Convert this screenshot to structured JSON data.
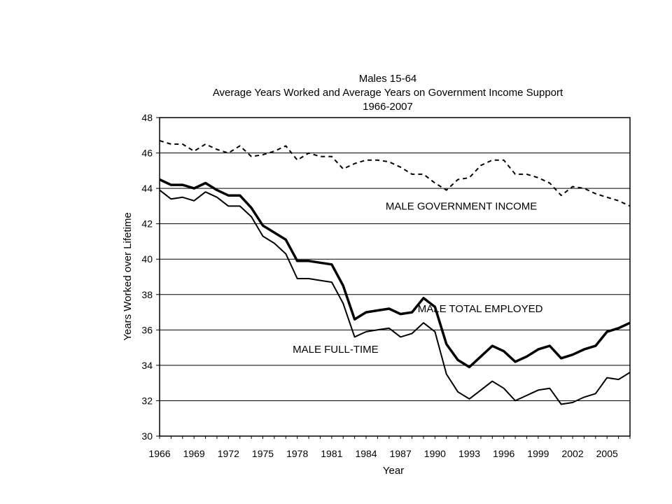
{
  "chart_data": {
    "type": "line",
    "title_lines": [
      "Males 15-64",
      "Average Years Worked and Average Years on Government Income Support",
      "1966-2007"
    ],
    "xlabel": "Year",
    "ylabel": "Years Worked over Lifetime",
    "xlim": [
      1966,
      2007
    ],
    "ylim": [
      30,
      48
    ],
    "y_ticks": [
      30,
      32,
      34,
      36,
      38,
      40,
      42,
      44,
      46,
      48
    ],
    "y_tick_labels": [
      "30",
      "32",
      "34",
      "36",
      "38",
      "40",
      "42",
      "44",
      "46",
      "48"
    ],
    "x_ticks": [
      1966,
      1969,
      1972,
      1975,
      1978,
      1981,
      1984,
      1987,
      1990,
      1993,
      1996,
      1999,
      2002,
      2005
    ],
    "x_tick_labels": [
      "1966",
      "1969",
      "1972",
      "1975",
      "1978",
      "1981",
      "1984",
      "1987",
      "1990",
      "1993",
      "1996",
      "1999",
      "2002",
      "2005"
    ],
    "grid": "horizontal",
    "x": [
      1966,
      1967,
      1968,
      1969,
      1970,
      1971,
      1972,
      1973,
      1974,
      1975,
      1976,
      1977,
      1978,
      1979,
      1980,
      1981,
      1982,
      1983,
      1984,
      1985,
      1986,
      1987,
      1988,
      1989,
      1990,
      1991,
      1992,
      1993,
      1994,
      1995,
      1996,
      1997,
      1998,
      1999,
      2000,
      2001,
      2002,
      2003,
      2004,
      2005,
      2006,
      2007
    ],
    "series": [
      {
        "name": "MALE GOVERNMENT INCOME",
        "style": "dashed",
        "values": [
          46.7,
          46.5,
          46.5,
          46.1,
          46.5,
          46.2,
          46.0,
          46.4,
          45.8,
          45.9,
          46.1,
          46.4,
          45.6,
          46.0,
          45.8,
          45.8,
          45.1,
          45.4,
          45.6,
          45.6,
          45.5,
          45.2,
          44.8,
          44.8,
          44.3,
          43.9,
          44.5,
          44.6,
          45.3,
          45.6,
          45.6,
          44.8,
          44.8,
          44.6,
          44.3,
          43.6,
          44.1,
          44.0,
          43.7,
          43.5,
          43.3,
          43.0
        ],
        "label_year": 1985.7,
        "label_value": 42.8
      },
      {
        "name": "MALE TOTAL EMPLOYED",
        "style": "thick",
        "values": [
          44.5,
          44.2,
          44.2,
          44.0,
          44.3,
          43.9,
          43.6,
          43.6,
          42.9,
          41.9,
          41.5,
          41.1,
          39.9,
          39.9,
          39.8,
          39.7,
          38.5,
          36.6,
          37.0,
          37.1,
          37.2,
          36.9,
          37.0,
          37.8,
          37.3,
          35.2,
          34.3,
          33.9,
          34.5,
          35.1,
          34.8,
          34.2,
          34.5,
          34.9,
          35.1,
          34.4,
          34.6,
          34.9,
          35.1,
          35.9,
          36.1,
          36.4
        ],
        "label_year": 1988.5,
        "label_value": 37.0
      },
      {
        "name": "MALE FULL-TIME",
        "style": "thin",
        "values": [
          43.9,
          43.4,
          43.5,
          43.3,
          43.8,
          43.5,
          43.0,
          43.0,
          42.4,
          41.3,
          40.9,
          40.3,
          38.9,
          38.9,
          38.8,
          38.7,
          37.5,
          35.6,
          35.9,
          36.0,
          36.1,
          35.6,
          35.8,
          36.4,
          35.9,
          33.5,
          32.5,
          32.1,
          32.6,
          33.1,
          32.7,
          32.0,
          32.3,
          32.6,
          32.7,
          31.8,
          31.9,
          32.2,
          32.4,
          33.3,
          33.2,
          33.6
        ],
        "label_year": 1977.6,
        "label_value": 34.7
      }
    ]
  }
}
